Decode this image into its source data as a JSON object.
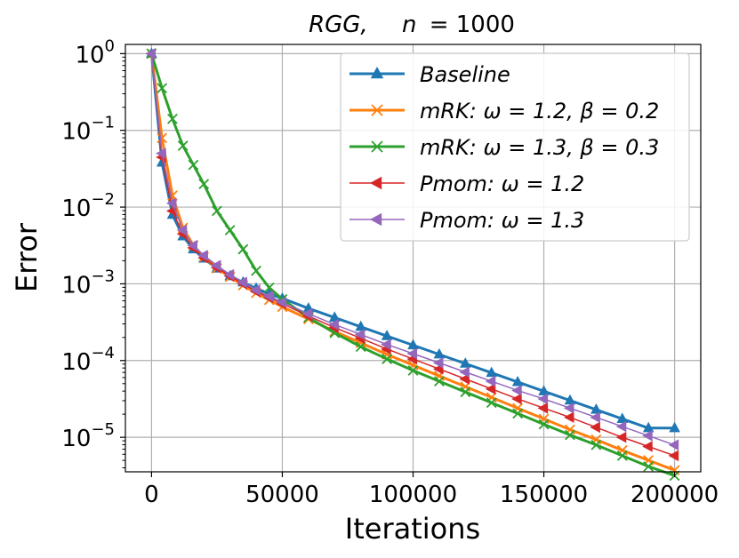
{
  "chart_data": {
    "type": "line",
    "title": "RGG,    n = 1000",
    "title_parts": {
      "graph": "RGG,",
      "param": "n",
      "eq": "= 1000"
    },
    "xlabel": "Iterations",
    "ylabel": "Error",
    "yscale": "log",
    "xlim": [
      -10000,
      210000
    ],
    "ylim_log10": [
      -5.45,
      0.12
    ],
    "x_ticks": [
      0,
      50000,
      100000,
      150000,
      200000
    ],
    "x_tick_labels": [
      "0",
      "50000",
      "100000",
      "150000",
      "200000"
    ],
    "y_ticks_exponent": [
      0,
      -1,
      -2,
      -3,
      -4,
      -5
    ],
    "y_tick_labels": [
      {
        "base": "10",
        "exp": "0"
      },
      {
        "base": "10",
        "exp": "−1"
      },
      {
        "base": "10",
        "exp": "−2"
      },
      {
        "base": "10",
        "exp": "−3"
      },
      {
        "base": "10",
        "exp": "−4"
      },
      {
        "base": "10",
        "exp": "−5"
      }
    ],
    "grid": true,
    "legend_position": "top-right",
    "x": [
      0,
      4000,
      8000,
      12000,
      16000,
      20000,
      25000,
      30000,
      35000,
      40000,
      45000,
      50000,
      60000,
      70000,
      80000,
      90000,
      100000,
      110000,
      120000,
      130000,
      140000,
      150000,
      160000,
      170000,
      180000,
      190000,
      200000
    ],
    "series": [
      {
        "name": "Baseline",
        "label_main": "Baseline",
        "label_math": "",
        "color": "#1f77b4",
        "marker": "triangle-up",
        "line_width": 3,
        "log10_values": [
          0,
          -1.42,
          -2.1,
          -2.38,
          -2.55,
          -2.67,
          -2.8,
          -2.9,
          -2.98,
          -3.06,
          -3.13,
          -3.19,
          -3.32,
          -3.44,
          -3.56,
          -3.68,
          -3.8,
          -3.92,
          -4.04,
          -4.16,
          -4.28,
          -4.4,
          -4.52,
          -4.64,
          -4.76,
          -4.88,
          -4.88
        ]
      },
      {
        "name": "mRK: ω = 1.2, β = 0.2",
        "label_main": "mRK",
        "label_math": ": ω = 1.2, β = 0.2",
        "color": "#ff7f0e",
        "marker": "x",
        "line_width": 3,
        "log10_values": [
          0,
          -1.1,
          -1.85,
          -2.27,
          -2.5,
          -2.65,
          -2.8,
          -2.91,
          -3.02,
          -3.12,
          -3.21,
          -3.3,
          -3.46,
          -3.62,
          -3.77,
          -3.92,
          -4.06,
          -4.2,
          -4.34,
          -4.48,
          -4.62,
          -4.76,
          -4.9,
          -5.03,
          -5.17,
          -5.3,
          -5.43
        ]
      },
      {
        "name": "mRK: ω = 1.3, β = 0.3",
        "label_main": "mRK",
        "label_math": ": ω = 1.3, β = 0.3",
        "color": "#2ca02c",
        "marker": "x",
        "line_width": 3,
        "log10_values": [
          0,
          -0.45,
          -0.85,
          -1.2,
          -1.45,
          -1.7,
          -2.05,
          -2.3,
          -2.55,
          -2.83,
          -3.05,
          -3.2,
          -3.44,
          -3.64,
          -3.82,
          -3.98,
          -4.13,
          -4.27,
          -4.41,
          -4.55,
          -4.69,
          -4.83,
          -4.97,
          -5.1,
          -5.24,
          -5.38,
          -5.5
        ]
      },
      {
        "name": "Pmom: ω = 1.2",
        "label_main": "Pmom",
        "label_math": ": ω = 1.2",
        "color": "#d62728",
        "marker": "triangle-left",
        "line_width": 1.5,
        "log10_values": [
          0,
          -1.35,
          -2.05,
          -2.35,
          -2.53,
          -2.66,
          -2.79,
          -2.9,
          -3.0,
          -3.1,
          -3.18,
          -3.26,
          -3.42,
          -3.57,
          -3.71,
          -3.85,
          -3.98,
          -4.11,
          -4.24,
          -4.37,
          -4.5,
          -4.62,
          -4.74,
          -4.87,
          -5.0,
          -5.12,
          -5.24
        ]
      },
      {
        "name": "Pmom: ω = 1.3",
        "label_main": "Pmom",
        "label_math": ": ω = 1.3",
        "color": "#9467bd",
        "marker": "triangle-left",
        "line_width": 1.5,
        "log10_values": [
          0,
          -1.3,
          -1.95,
          -2.3,
          -2.5,
          -2.63,
          -2.76,
          -2.88,
          -2.98,
          -3.08,
          -3.16,
          -3.24,
          -3.39,
          -3.53,
          -3.66,
          -3.79,
          -3.91,
          -4.03,
          -4.15,
          -4.27,
          -4.39,
          -4.5,
          -4.62,
          -4.74,
          -4.86,
          -4.98,
          -5.1
        ]
      }
    ]
  }
}
